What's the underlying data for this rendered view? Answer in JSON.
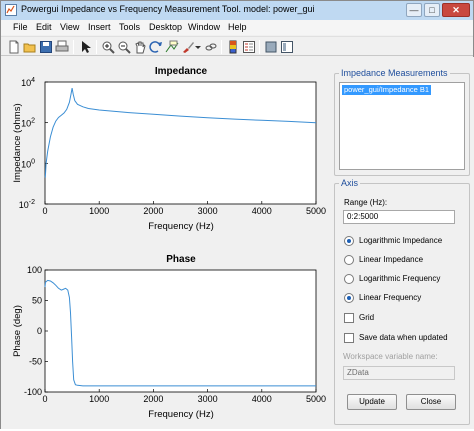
{
  "window": {
    "title": "Powergui Impedance vs Frequency Measurement Tool.  model: power_gui",
    "controls": {
      "minimize": "—",
      "maximize": "□",
      "close": "✕"
    }
  },
  "menubar": {
    "items": [
      "File",
      "Edit",
      "View",
      "Insert",
      "Tools",
      "Desktop",
      "Window",
      "Help"
    ]
  },
  "toolbar": {
    "icons": [
      "new-figure-icon",
      "open-icon",
      "save-icon",
      "print-icon",
      "edit-plot-arrow-icon",
      "zoom-in-icon",
      "zoom-out-icon",
      "pan-icon",
      "rotate-icon",
      "data-cursor-icon",
      "brush-icon",
      "link-icon",
      "colorbar-icon",
      "legend-icon",
      "hide-plot-tools-icon",
      "show-plot-tools-icon"
    ]
  },
  "impedance_plot": {
    "title": "Impedance",
    "xlabel": "Frequency (Hz)",
    "ylabel": "Impedance (ohms)",
    "xticks": [
      "0",
      "1000",
      "2000",
      "3000",
      "4000",
      "5000"
    ],
    "yticks": [
      {
        "base": "10",
        "exp": "4"
      },
      {
        "base": "10",
        "exp": "2"
      },
      {
        "base": "10",
        "exp": "0"
      },
      {
        "base": "10",
        "exp": "-2"
      }
    ]
  },
  "phase_plot": {
    "title": "Phase",
    "xlabel": "Frequency (Hz)",
    "ylabel": "Phase (deg)",
    "xticks": [
      "0",
      "1000",
      "2000",
      "3000",
      "4000",
      "5000"
    ],
    "yticks": [
      "100",
      "50",
      "0",
      "-50",
      "-100"
    ]
  },
  "chart_data": [
    {
      "type": "line",
      "title": "Impedance",
      "xlabel": "Frequency (Hz)",
      "ylabel": "Impedance (ohms)",
      "xlim": [
        0,
        5000
      ],
      "ylim": [
        0.01,
        10000
      ],
      "yscale": "log",
      "grid": false,
      "color": "#3b8ed4",
      "x": [
        5,
        20,
        50,
        100,
        150,
        200,
        250,
        300,
        350,
        400,
        450,
        480,
        500,
        520,
        550,
        600,
        700,
        800,
        1000,
        1500,
        2000,
        2500,
        3000,
        3500,
        4000,
        4500,
        5000
      ],
      "y": [
        0.2,
        1,
        4,
        20,
        60,
        120,
        180,
        230,
        300,
        450,
        1000,
        2500,
        5000,
        2500,
        1200,
        800,
        600,
        500,
        420,
        320,
        260,
        210,
        175,
        150,
        130,
        115,
        100
      ]
    },
    {
      "type": "line",
      "title": "Phase",
      "xlabel": "Frequency (Hz)",
      "ylabel": "Phase (deg)",
      "xlim": [
        0,
        5000
      ],
      "ylim": [
        -100,
        100
      ],
      "grid": false,
      "color": "#3b8ed4",
      "x": [
        0,
        10,
        50,
        100,
        150,
        200,
        250,
        300,
        330,
        380,
        420,
        450,
        470,
        490,
        510,
        530,
        560,
        600,
        700,
        1000,
        2000,
        3000,
        4000,
        5000
      ],
      "y": [
        72,
        80,
        83,
        82,
        79,
        75,
        70,
        67,
        68,
        70,
        67,
        55,
        30,
        -10,
        -50,
        -80,
        -88,
        -89,
        -90,
        -90,
        -90,
        -90,
        -90,
        -90
      ]
    }
  ],
  "side_panel": {
    "measurements": {
      "title": "Impedance Measurements",
      "items": [
        "power_gui/Impedance B1"
      ]
    },
    "axis": {
      "title": "Axis",
      "range_label": "Range (Hz):",
      "range_value": "0:2:5000",
      "options": [
        {
          "label": "Logarithmic Impedance",
          "selected": true
        },
        {
          "label": "Linear Impedance",
          "selected": false
        },
        {
          "label": "Logarithmic Frequency",
          "selected": false
        },
        {
          "label": "Linear Frequency",
          "selected": true
        }
      ],
      "grid_label": "Grid",
      "save_label": "Save data when updated",
      "workspace_label": "Workspace variable name:",
      "workspace_value": "ZData",
      "update_button": "Update",
      "close_button": "Close"
    }
  }
}
